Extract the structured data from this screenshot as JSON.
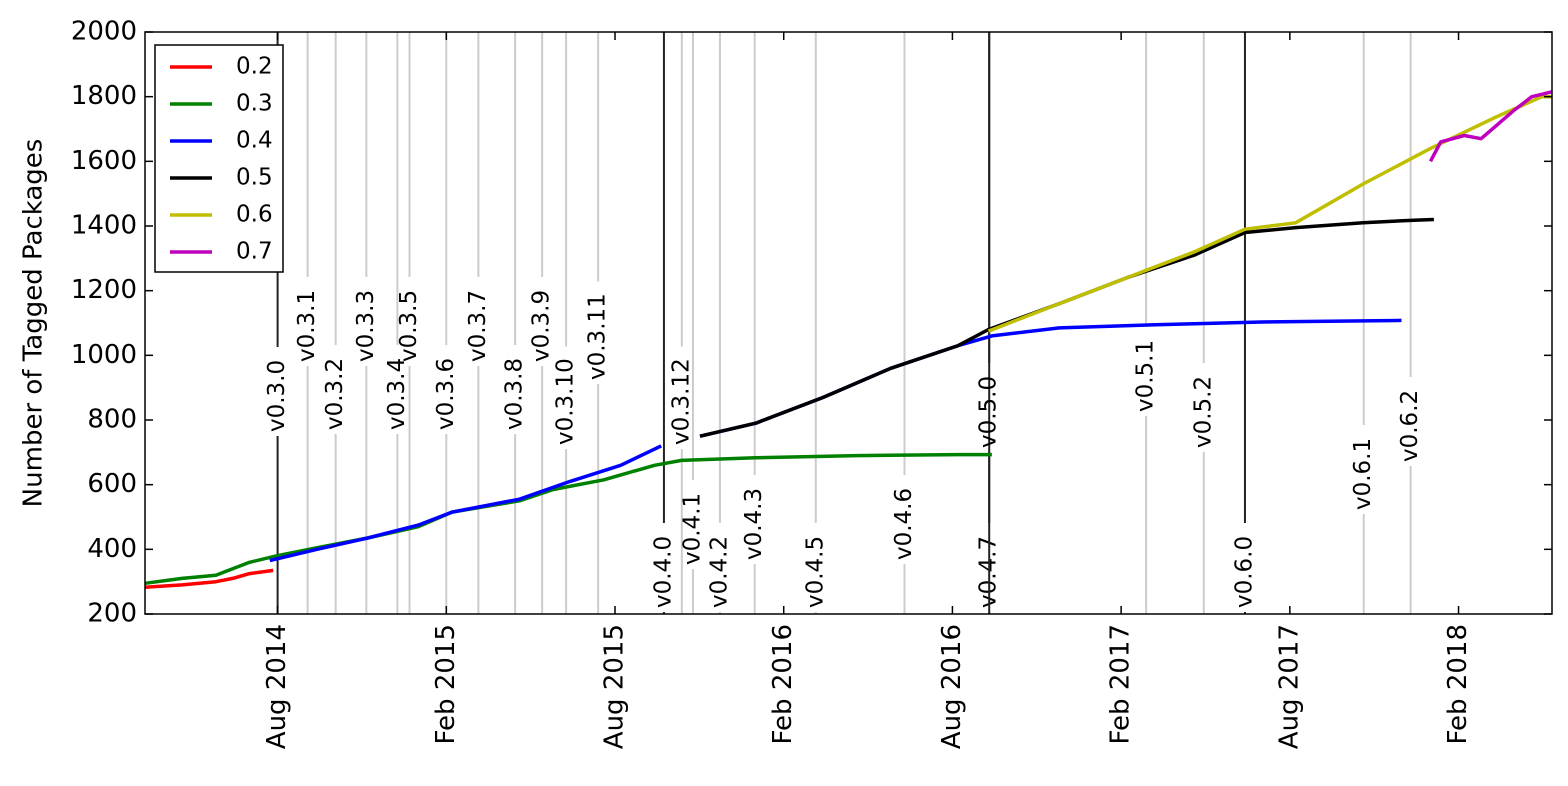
{
  "chart_data": {
    "type": "line",
    "ylabel": "Number of Tagged Packages",
    "xlim": [
      2014.19,
      2018.36
    ],
    "ylim": [
      200,
      2000
    ],
    "yticks": [
      200,
      400,
      600,
      800,
      1000,
      1200,
      1400,
      1600,
      1800,
      2000
    ],
    "xticks": [
      {
        "value": 2014.583,
        "label": "Aug 2014"
      },
      {
        "value": 2015.083,
        "label": "Feb 2015"
      },
      {
        "value": 2015.583,
        "label": "Aug 2015"
      },
      {
        "value": 2016.083,
        "label": "Feb 2016"
      },
      {
        "value": 2016.583,
        "label": "Aug 2016"
      },
      {
        "value": 2017.083,
        "label": "Feb 2017"
      },
      {
        "value": 2017.583,
        "label": "Aug 2017"
      },
      {
        "value": 2018.083,
        "label": "Feb 2018"
      }
    ],
    "legend": "upper left",
    "series": [
      {
        "name": "0.2",
        "color": "#ff0000",
        "x": [
          2014.19,
          2014.3,
          2014.4,
          2014.45,
          2014.5,
          2014.57
        ],
        "values": [
          283,
          290,
          300,
          310,
          325,
          335
        ]
      },
      {
        "name": "0.3",
        "color": "#008000",
        "x": [
          2014.19,
          2014.3,
          2014.4,
          2014.45,
          2014.5,
          2014.58,
          2014.7,
          2014.85,
          2015.0,
          2015.1,
          2015.3,
          2015.4,
          2015.55,
          2015.7,
          2015.78,
          2016.0,
          2016.3,
          2016.6,
          2016.7
        ],
        "values": [
          295,
          310,
          320,
          340,
          360,
          380,
          405,
          435,
          470,
          515,
          550,
          585,
          615,
          660,
          675,
          683,
          690,
          693,
          693
        ]
      },
      {
        "name": "0.4",
        "color": "#0000ff",
        "x": [
          2014.56,
          2014.7,
          2014.85,
          2015.0,
          2015.1,
          2015.3,
          2015.45,
          2015.6,
          2015.72,
          2015.78,
          2015.835,
          2016.0,
          2016.2,
          2016.4,
          2016.6,
          2016.7,
          2016.9,
          2017.2,
          2017.5,
          2017.914
        ],
        "values": [
          365,
          400,
          435,
          475,
          515,
          555,
          610,
          660,
          720,
          null,
          750,
          790,
          870,
          960,
          1030,
          1060,
          1085,
          1095,
          1103,
          1108
        ]
      },
      {
        "name": "0.5",
        "color": "#000000",
        "x": [
          2015.835,
          2016.0,
          2016.2,
          2016.4,
          2016.6,
          2016.69,
          2016.9,
          2017.1,
          2017.3,
          2017.45,
          2017.6,
          2017.8,
          2017.95,
          2018.01
        ],
        "values": [
          750,
          790,
          870,
          960,
          1030,
          1080,
          1160,
          1240,
          1310,
          1380,
          1395,
          1410,
          1418,
          1420
        ]
      },
      {
        "name": "0.6",
        "color": "#bfbf00",
        "x": [
          2016.69,
          2016.9,
          2017.1,
          2017.3,
          2017.45,
          2017.6,
          2017.8,
          2018.0,
          2018.2,
          2018.33,
          2018.36
        ],
        "values": [
          1075,
          1160,
          1240,
          1320,
          1390,
          1410,
          1530,
          1640,
          1740,
          1800,
          1800
        ]
      },
      {
        "name": "0.7",
        "color": "#bf00bf",
        "x": [
          2018.0,
          2018.03,
          2018.1,
          2018.15,
          2018.25,
          2018.3,
          2018.36
        ],
        "values": [
          1600,
          1660,
          1680,
          1670,
          1760,
          1800,
          1815
        ]
      }
    ],
    "releases": [
      {
        "label": "v0.3.0",
        "x": 2014.583,
        "major": true
      },
      {
        "label": "v0.3.1",
        "x": 2014.672
      },
      {
        "label": "v0.3.2",
        "x": 2014.755
      },
      {
        "label": "v0.3.3",
        "x": 2014.846
      },
      {
        "label": "v0.3.4",
        "x": 2014.938
      },
      {
        "label": "v0.3.5",
        "x": 2014.974
      },
      {
        "label": "v0.3.6",
        "x": 2015.083
      },
      {
        "label": "v0.3.7",
        "x": 2015.178
      },
      {
        "label": "v0.3.8",
        "x": 2015.287
      },
      {
        "label": "v0.3.9",
        "x": 2015.367
      },
      {
        "label": "v0.3.10",
        "x": 2015.438
      },
      {
        "label": "v0.3.11",
        "x": 2015.533
      },
      {
        "label": "v0.3.12",
        "x": 2015.781
      },
      {
        "label": "v0.4.0",
        "x": 2015.728,
        "major": true
      },
      {
        "label": "v0.4.1",
        "x": 2015.814
      },
      {
        "label": "v0.4.2",
        "x": 2015.894
      },
      {
        "label": "v0.4.3",
        "x": 2015.997
      },
      {
        "label": "v0.4.5",
        "x": 2016.178
      },
      {
        "label": "v0.4.6",
        "x": 2016.441
      },
      {
        "label": "v0.4.7",
        "x": 2016.692,
        "major": true
      },
      {
        "label": "v0.5.0",
        "x": 2016.692,
        "major": true
      },
      {
        "label": "v0.5.1",
        "x": 2017.157
      },
      {
        "label": "v0.5.2",
        "x": 2017.328
      },
      {
        "label": "v0.6.0",
        "x": 2017.45,
        "major": true
      },
      {
        "label": "v0.6.1",
        "x": 2017.802
      },
      {
        "label": "v0.6.2",
        "x": 2017.941
      }
    ]
  }
}
